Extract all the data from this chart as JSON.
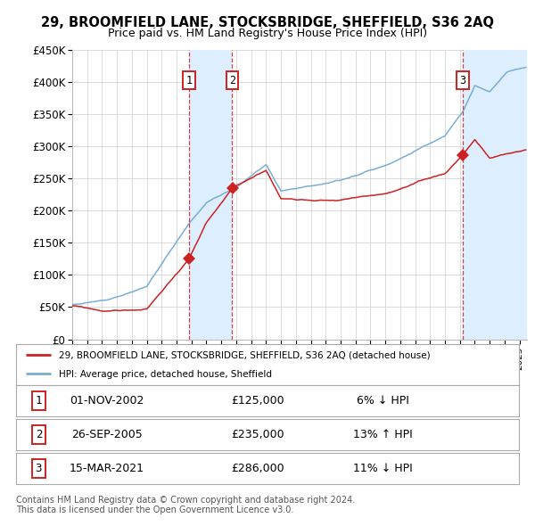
{
  "title": "29, BROOMFIELD LANE, STOCKSBRIDGE, SHEFFIELD, S36 2AQ",
  "subtitle": "Price paid vs. HM Land Registry's House Price Index (HPI)",
  "ylabel_ticks": [
    "£0",
    "£50K",
    "£100K",
    "£150K",
    "£200K",
    "£250K",
    "£300K",
    "£350K",
    "£400K",
    "£450K"
  ],
  "ylim": [
    0,
    450000
  ],
  "xlim_start": 1995.0,
  "xlim_end": 2025.5,
  "hpi_color": "#7aadd4",
  "price_color": "#cc2222",
  "shade_color": "#ddeeff",
  "transactions": [
    {
      "date": 2002.833,
      "price": 125000,
      "label": "1"
    },
    {
      "date": 2005.733,
      "price": 235000,
      "label": "2"
    },
    {
      "date": 2021.2,
      "price": 286000,
      "label": "3"
    }
  ],
  "legend_line1": "29, BROOMFIELD LANE, STOCKSBRIDGE, SHEFFIELD, S36 2AQ (detached house)",
  "legend_line2": "HPI: Average price, detached house, Sheffield",
  "table_rows": [
    {
      "num": "1",
      "date": "01-NOV-2002",
      "price": "£125,000",
      "pct": "6% ↓ HPI"
    },
    {
      "num": "2",
      "date": "26-SEP-2005",
      "price": "£235,000",
      "pct": "13% ↑ HPI"
    },
    {
      "num": "3",
      "date": "15-MAR-2021",
      "price": "£286,000",
      "pct": "11% ↓ HPI"
    }
  ],
  "footer": "Contains HM Land Registry data © Crown copyright and database right 2024.\nThis data is licensed under the Open Government Licence v3.0.",
  "background_color": "#ffffff",
  "grid_color": "#cccccc"
}
